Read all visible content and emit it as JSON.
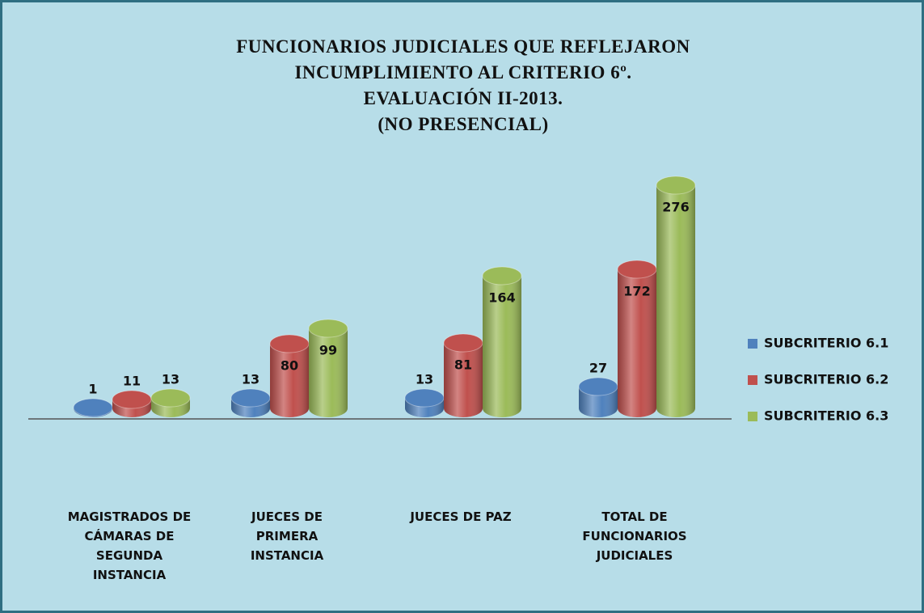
{
  "chart_data": {
    "type": "bar3d",
    "title": [
      "FUNCIONARIOS JUDICIALES  QUE REFLEJARON",
      "INCUMPLIMIENTO AL CRITERIO 6º.",
      "EVALUACIÓN II-2013.",
      "(NO PRESENCIAL)"
    ],
    "categories": [
      "MAGISTRADOS DE\nCÁMARAS DE\nSEGUNDA\nINSTANCIA",
      "JUECES DE\nPRIMERA\nINSTANCIA",
      "JUECES DE PAZ",
      "TOTAL DE\nFUNCIONARIOS\nJUDICIALES"
    ],
    "series": [
      {
        "name": "SUBCRITERIO 6.1",
        "color": "#4f81bd",
        "values": [
          1,
          13,
          13,
          27
        ]
      },
      {
        "name": "SUBCRITERIO 6.2",
        "color": "#c0504d",
        "values": [
          11,
          80,
          81,
          172
        ]
      },
      {
        "name": "SUBCRITERIO 6.3",
        "color": "#9bbb59",
        "values": [
          13,
          99,
          164,
          276
        ]
      }
    ],
    "ylim": [
      0,
      300
    ],
    "legend": "right"
  }
}
